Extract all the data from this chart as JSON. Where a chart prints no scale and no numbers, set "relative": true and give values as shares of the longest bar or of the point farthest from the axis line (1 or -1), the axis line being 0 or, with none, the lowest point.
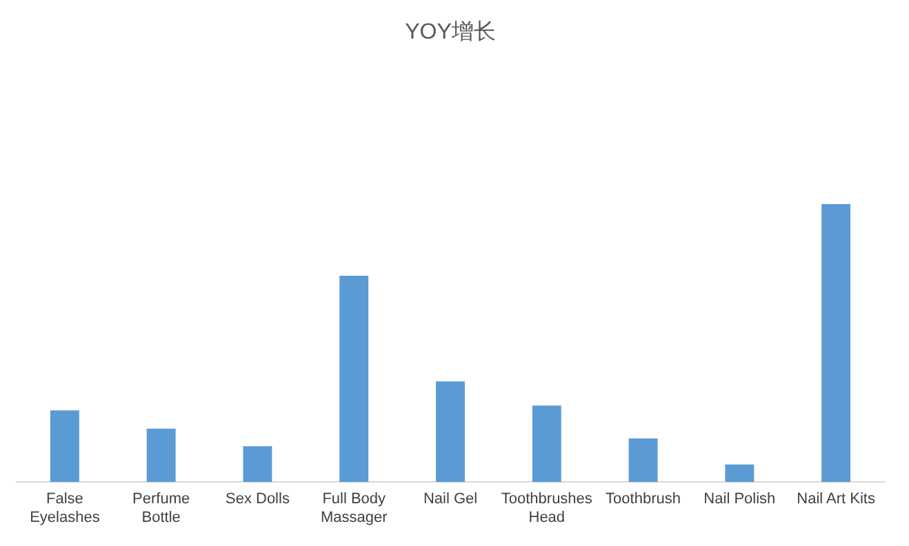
{
  "chart_data": {
    "type": "bar",
    "title": "YOY增长",
    "categories": [
      "False Eyelashes",
      "Perfume Bottle",
      "Sex Dolls",
      "Full Body Massager",
      "Nail Gel",
      "Toothbrushes Head",
      "Toothbrush",
      "Nail Polish",
      "Nail Art Kits"
    ],
    "values": [
      0.258,
      0.192,
      0.129,
      0.742,
      0.362,
      0.275,
      0.157,
      0.063,
      1
    ],
    "color": "#5b9bd5",
    "relative": true,
    "legend": false
  }
}
